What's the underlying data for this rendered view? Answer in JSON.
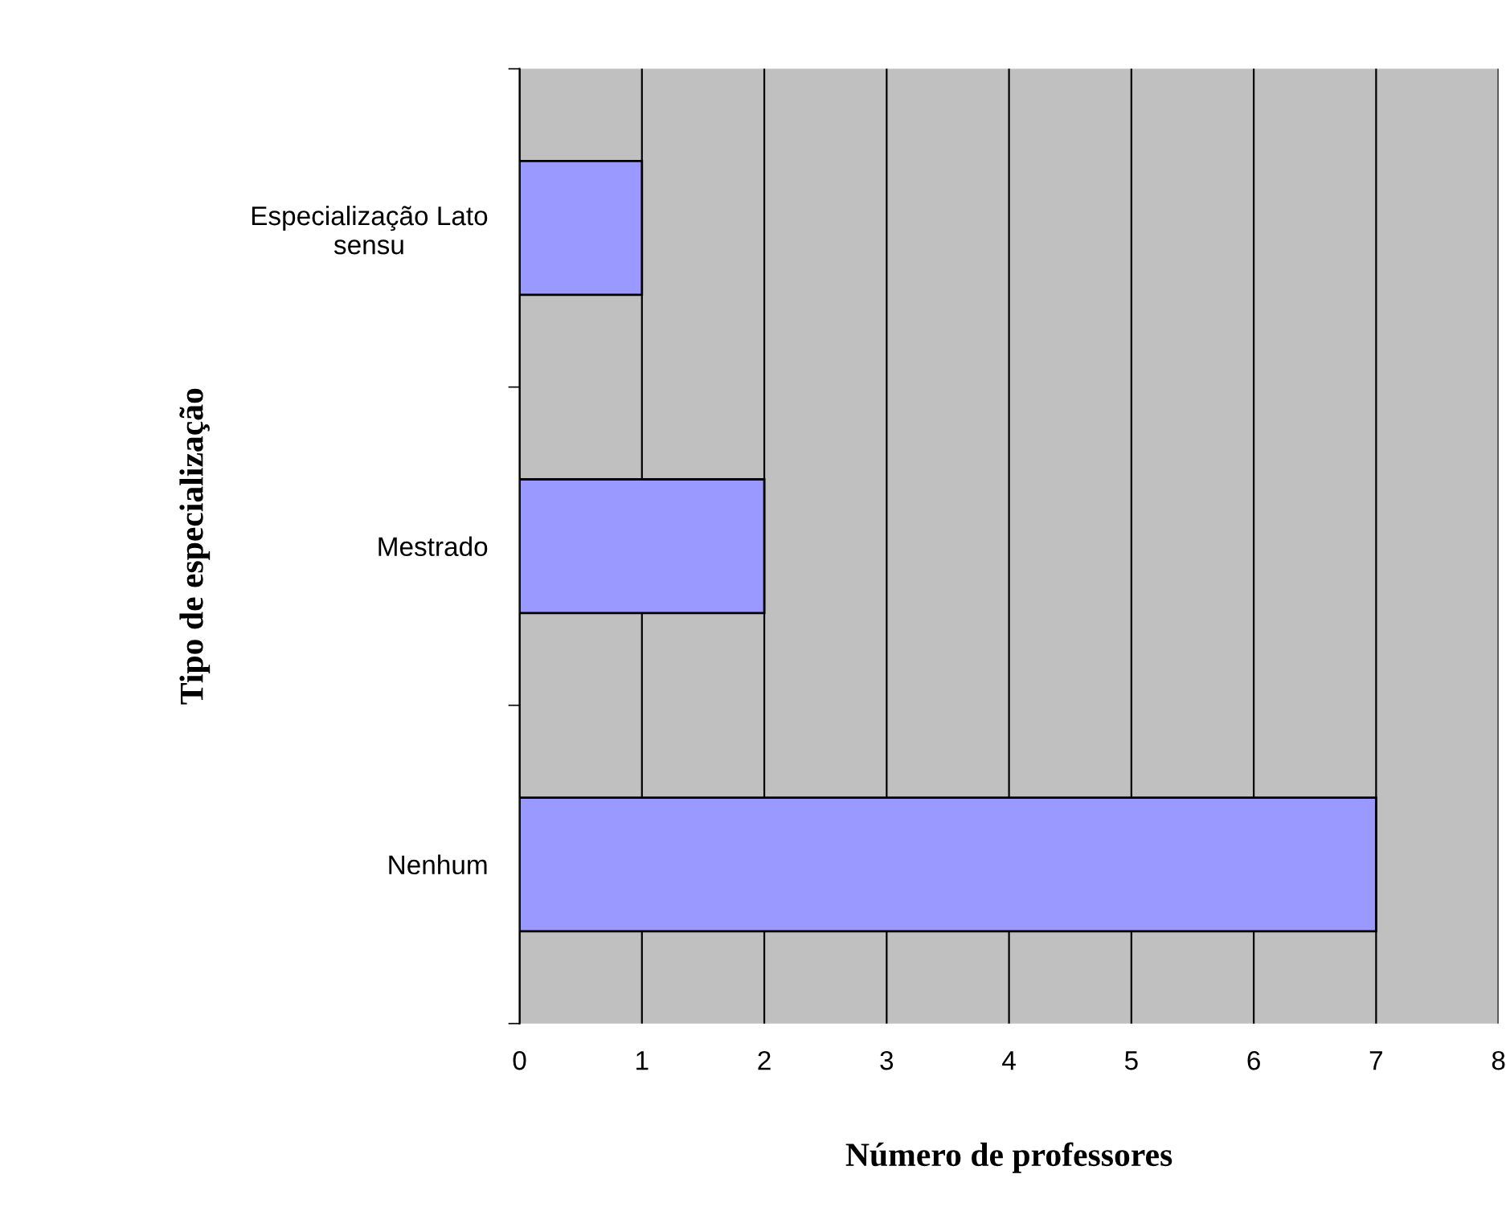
{
  "chart_data": {
    "type": "bar",
    "orientation": "horizontal",
    "categories": [
      "Especialização Lato\nsensu",
      "Mestrado",
      "Nenhum"
    ],
    "values": [
      1,
      2,
      7
    ],
    "color": "#9999ff",
    "xlim": [
      0,
      8
    ],
    "xticks": [
      0,
      1,
      2,
      3,
      4,
      5,
      6,
      7,
      8
    ],
    "grid": "x",
    "xlabel": "Número de professores",
    "ylabel": "Tipo de especialização"
  }
}
